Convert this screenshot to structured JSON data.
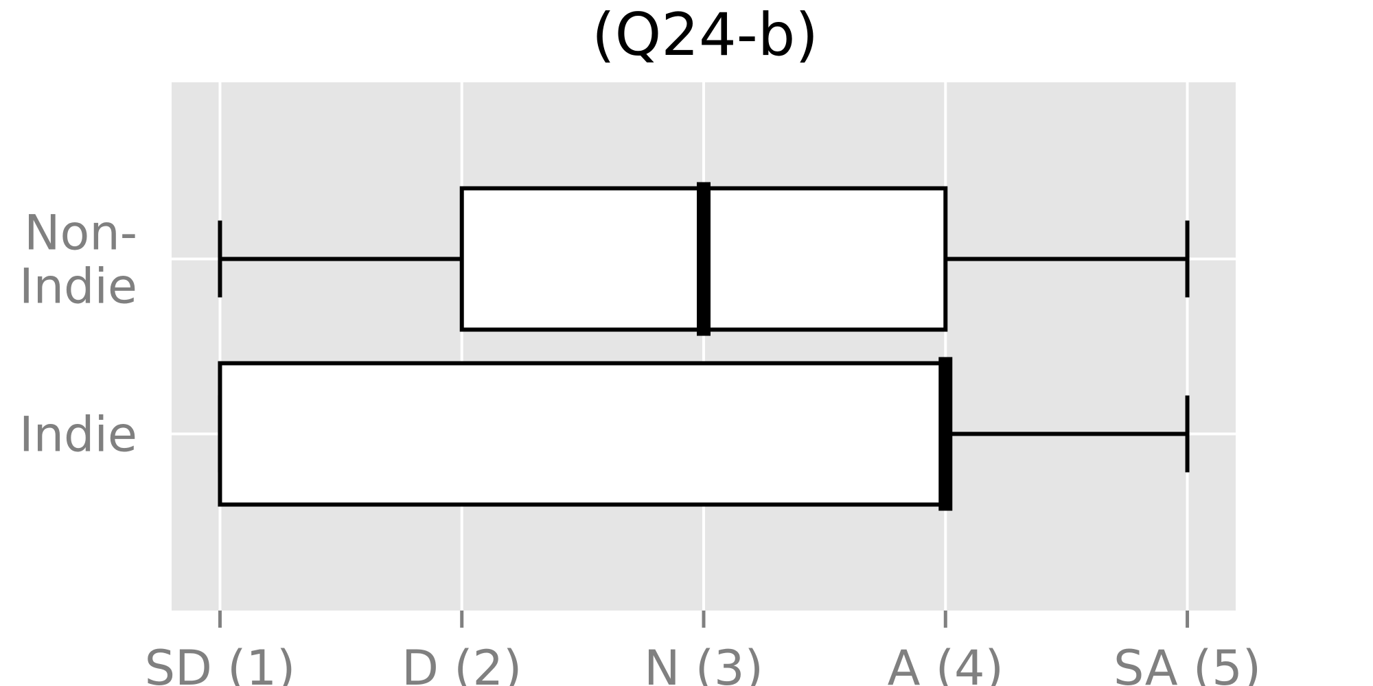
{
  "chart_data": {
    "type": "boxplot",
    "orientation": "horizontal",
    "title": "(Q24-b)",
    "xlabel": "",
    "ylabel": "",
    "x_ticks": [
      {
        "value": 1,
        "label": "SD (1)"
      },
      {
        "value": 2,
        "label": "D (2)"
      },
      {
        "value": 3,
        "label": "N (3)"
      },
      {
        "value": 4,
        "label": "A (4)"
      },
      {
        "value": 5,
        "label": "SA (5)"
      }
    ],
    "xlim": [
      0.8,
      5.2
    ],
    "categories": [
      {
        "label_lines": [
          "Non-",
          "Indie"
        ],
        "whisker_low": 1,
        "q1": 2,
        "median": 3,
        "q3": 4,
        "whisker_high": 5
      },
      {
        "label_lines": [
          "Indie"
        ],
        "whisker_low": 1,
        "q1": 1,
        "median": 4,
        "q3": 4,
        "whisker_high": 5
      }
    ],
    "grid": true,
    "colors": {
      "panel_background": "#e5e5e5",
      "grid": "#ffffff",
      "box_fill": "#ffffff",
      "box_stroke": "#000000",
      "tick_label": "#808080",
      "title": "#000000"
    }
  }
}
